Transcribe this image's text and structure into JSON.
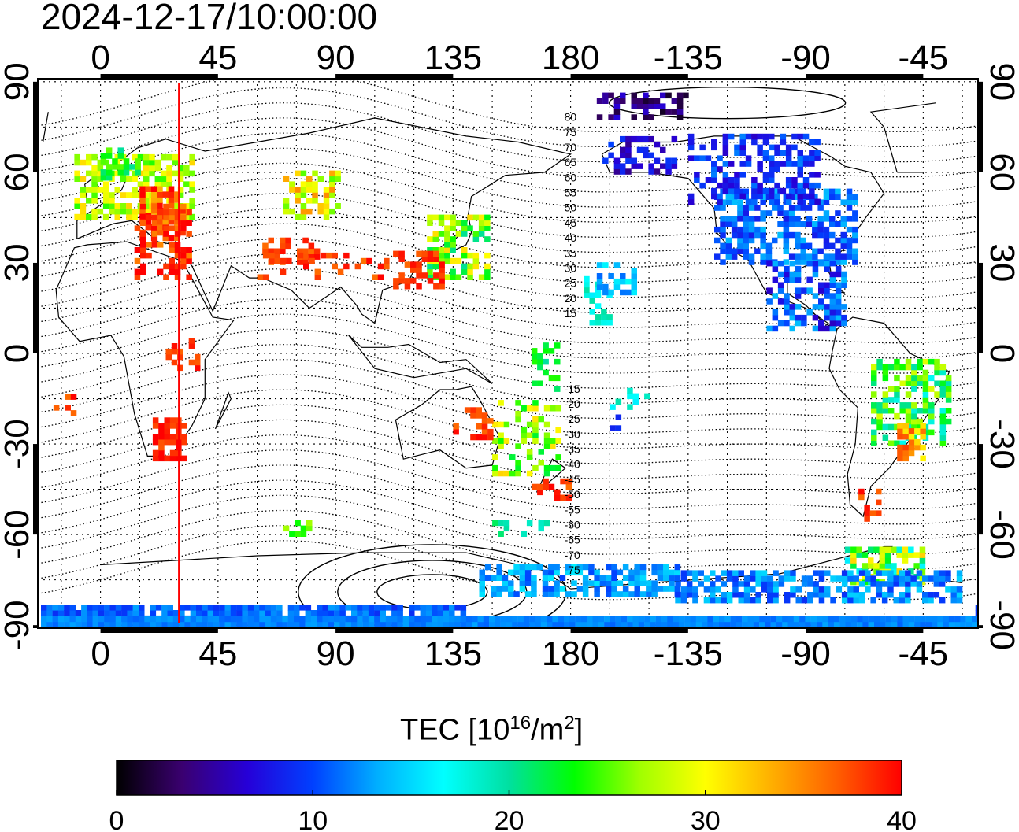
{
  "timestamp": "2024-12-17/10:00:00",
  "map": {
    "lon_ticks": [
      0,
      45,
      90,
      135,
      180,
      -135,
      -90,
      -45
    ],
    "lon_tick_labels": [
      "0",
      "45",
      "90",
      "135",
      "180",
      "-135",
      "-90",
      "-45"
    ],
    "lat_ticks": [
      90,
      60,
      30,
      0,
      -30,
      -60,
      -90
    ],
    "lat_tick_labels": [
      "90",
      "60",
      "30",
      "0",
      "-30",
      "-60",
      "-90"
    ],
    "lon_range": [
      -24,
      336
    ],
    "lat_range": [
      -91,
      91
    ],
    "grid": true,
    "marker_longitude": 30,
    "marker_color": "#ff0000",
    "contour_labels": [
      "80",
      "75",
      "70",
      "65",
      "60",
      "55",
      "50",
      "45",
      "40",
      "35",
      "30",
      "25",
      "20",
      "15",
      "-15",
      "-20",
      "-25",
      "-30",
      "-35",
      "-40",
      "-45",
      "-50",
      "-55",
      "-60",
      "-65",
      "-70",
      "-75"
    ]
  },
  "colorbar": {
    "title_main": "TEC  [10",
    "title_exp": "16",
    "title_unit": "/m",
    "title_exp2": "2",
    "title_close": "]",
    "min": 0,
    "max": 40,
    "tick_values": [
      0,
      10,
      20,
      30,
      40
    ],
    "tick_labels": [
      "0",
      "10",
      "20",
      "30",
      "40"
    ],
    "colors": [
      "#000000",
      "#3a0070",
      "#2600d8",
      "#0040ff",
      "#00b0ff",
      "#00ffff",
      "#00e0a0",
      "#00ff00",
      "#a0ff00",
      "#ffff00",
      "#ffb000",
      "#ff6000",
      "#ff0000"
    ]
  }
}
